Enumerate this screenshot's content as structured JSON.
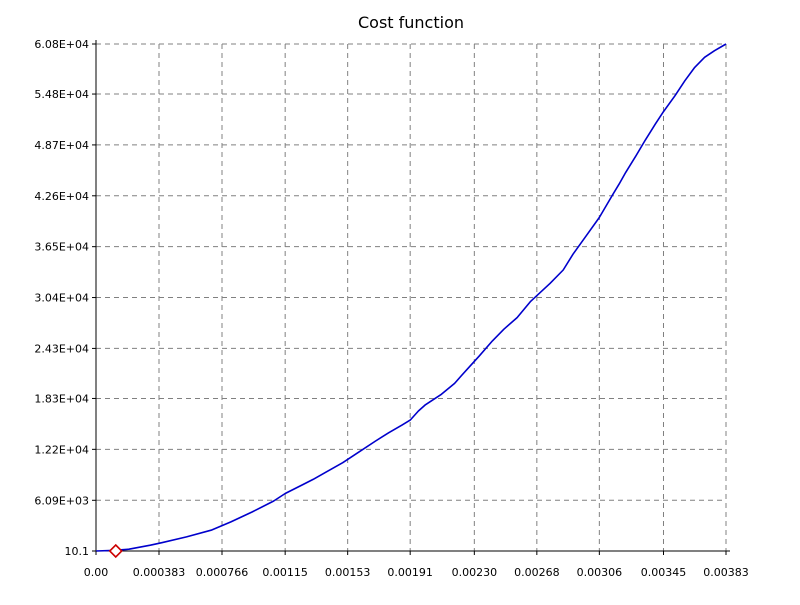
{
  "chart_data": {
    "type": "line",
    "title": "Cost function",
    "xlabel": "",
    "ylabel": "",
    "xlim": [
      0.0,
      0.00383
    ],
    "ylim": [
      10.1,
      60800
    ],
    "grid": true,
    "x_tick_labels": [
      "0.00",
      "0.000383",
      "0.000766",
      "0.00115",
      "0.00153",
      "0.00191",
      "0.00230",
      "0.00268",
      "0.00306",
      "0.00345",
      "0.00383"
    ],
    "x_ticks": [
      0.0,
      0.000383,
      0.000766,
      0.00115,
      0.00153,
      0.00191,
      0.0023,
      0.00268,
      0.00306,
      0.00345,
      0.00383
    ],
    "y_tick_labels": [
      "10.1",
      "6.09E+03",
      "1.22E+04",
      "1.83E+04",
      "2.43E+04",
      "3.04E+04",
      "3.65E+04",
      "4.26E+04",
      "4.87E+04",
      "5.48E+04",
      "6.08E+04"
    ],
    "y_ticks": [
      10.1,
      6090,
      12200,
      18300,
      24300,
      30400,
      36500,
      42600,
      48700,
      54800,
      60800
    ],
    "series": [
      {
        "color": "#0000cc",
        "x": [
          0.0,
          0.0001,
          0.0002,
          0.00033,
          0.0004,
          0.00055,
          0.0007,
          0.00082,
          0.00095,
          0.00108,
          0.00115,
          0.00126,
          0.00132,
          0.0014,
          0.0015,
          0.0016,
          0.0017,
          0.00178,
          0.00186,
          0.00191,
          0.00196,
          0.002,
          0.0021,
          0.00218,
          0.00222,
          0.00227,
          0.00233,
          0.00241,
          0.00248,
          0.00256,
          0.00264,
          0.00276,
          0.00284,
          0.0029,
          0.00298,
          0.00306,
          0.00314,
          0.00318,
          0.00322,
          0.00328,
          0.00334,
          0.0034,
          0.00345,
          0.00352,
          0.00358,
          0.00364,
          0.0037,
          0.00376,
          0.00383
        ],
        "y": [
          10.1,
          80,
          220,
          700,
          1000,
          1700,
          2500,
          3500,
          4700,
          6000,
          6900,
          8000,
          8600,
          9500,
          10600,
          11900,
          13200,
          14200,
          15100,
          15700,
          16800,
          17500,
          18800,
          20100,
          21000,
          22100,
          23400,
          25200,
          26600,
          28000,
          29900,
          32100,
          33700,
          35600,
          37800,
          40000,
          42700,
          44000,
          45400,
          47300,
          49300,
          51200,
          52700,
          54600,
          56400,
          58000,
          59200,
          60000,
          60800
        ]
      }
    ],
    "markers": [
      {
        "shape": "diamond",
        "color": "#cc0000",
        "x": 0.00012,
        "y": 10.1
      }
    ]
  }
}
